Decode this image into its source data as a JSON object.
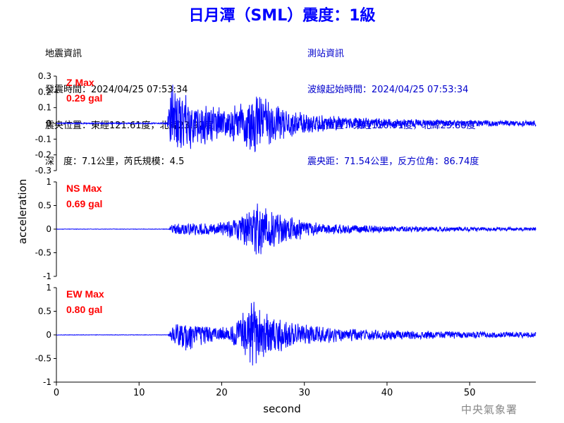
{
  "title": "日月潭（SML）震度：1級",
  "quake_info": {
    "heading": "地震資訊",
    "origin_time": "發震時間：2024/04/25 07:53:34",
    "epicenter": "震央位置：東經121.61度，北緯23.92度",
    "depth_magnitude": "深　度：7.1公里，芮氏規模：4.5"
  },
  "station_info": {
    "heading": "測站資訊",
    "wave_start": "波線起始時間：2024/04/25 07:53:34",
    "station_location": "測站位置：東經120.91度，北緯23.88度",
    "distance_azimuth": "震央距：71.54公里，反方位角：86.74度"
  },
  "credit": "中央氣象署",
  "colors": {
    "trace": "#0000ff",
    "max_label": "#ff0000",
    "title": "#0000ff",
    "station_text": "#0000cc"
  },
  "chart_data": {
    "type": "line",
    "xlabel": "second",
    "ylabel": "acceleration",
    "xlim": [
      0,
      58
    ],
    "x_ticks": [
      0,
      10,
      20,
      30,
      40,
      50
    ],
    "onset_s": 13.6,
    "panels": [
      {
        "component": "Z",
        "max_label": "Z Max",
        "max_value": "0.29 gal",
        "ylim": [
          -0.3,
          0.3
        ],
        "y_ticks": [
          0.3,
          0.2,
          0.1,
          0,
          -0.1,
          -0.2,
          -0.3
        ],
        "y_tick_labels": [
          "0.3",
          "0.2",
          "0.1",
          "0",
          "-0.1",
          "-0.2",
          "-0.3"
        ],
        "envelope": [
          [
            0,
            0.006
          ],
          [
            13.4,
            0.006
          ],
          [
            13.8,
            0.26
          ],
          [
            15,
            0.2
          ],
          [
            17,
            0.15
          ],
          [
            20,
            0.11
          ],
          [
            22.5,
            0.14
          ],
          [
            23.8,
            0.24
          ],
          [
            25,
            0.17
          ],
          [
            28,
            0.09
          ],
          [
            33,
            0.05
          ],
          [
            40,
            0.03
          ],
          [
            50,
            0.022
          ],
          [
            58,
            0.02
          ]
        ]
      },
      {
        "component": "NS",
        "max_label": "NS Max",
        "max_value": "0.69 gal",
        "ylim": [
          -1,
          1
        ],
        "y_ticks": [
          1,
          0.5,
          0,
          -0.5,
          -1
        ],
        "y_tick_labels": [
          "1",
          "0.5",
          "0",
          "-0.5",
          "-1"
        ],
        "envelope": [
          [
            0,
            0.006
          ],
          [
            13.6,
            0.006
          ],
          [
            14,
            0.12
          ],
          [
            16,
            0.15
          ],
          [
            19,
            0.12
          ],
          [
            22,
            0.25
          ],
          [
            24.5,
            0.6
          ],
          [
            26,
            0.42
          ],
          [
            28,
            0.3
          ],
          [
            32,
            0.12
          ],
          [
            40,
            0.07
          ],
          [
            50,
            0.05
          ],
          [
            58,
            0.04
          ]
        ]
      },
      {
        "component": "EW",
        "max_label": "EW Max",
        "max_value": "0.80 gal",
        "ylim": [
          -1,
          1
        ],
        "y_ticks": [
          1,
          0.5,
          0,
          -0.5,
          -1
        ],
        "y_tick_labels": [
          "1",
          "0.5",
          "0",
          "-0.5",
          "-1"
        ],
        "envelope": [
          [
            0,
            0.006
          ],
          [
            13.5,
            0.006
          ],
          [
            14,
            0.18
          ],
          [
            15.5,
            0.35
          ],
          [
            18,
            0.22
          ],
          [
            21,
            0.16
          ],
          [
            23.8,
            0.75
          ],
          [
            25,
            0.5
          ],
          [
            27,
            0.38
          ],
          [
            30,
            0.22
          ],
          [
            35,
            0.14
          ],
          [
            45,
            0.09
          ],
          [
            58,
            0.06
          ]
        ]
      }
    ]
  }
}
